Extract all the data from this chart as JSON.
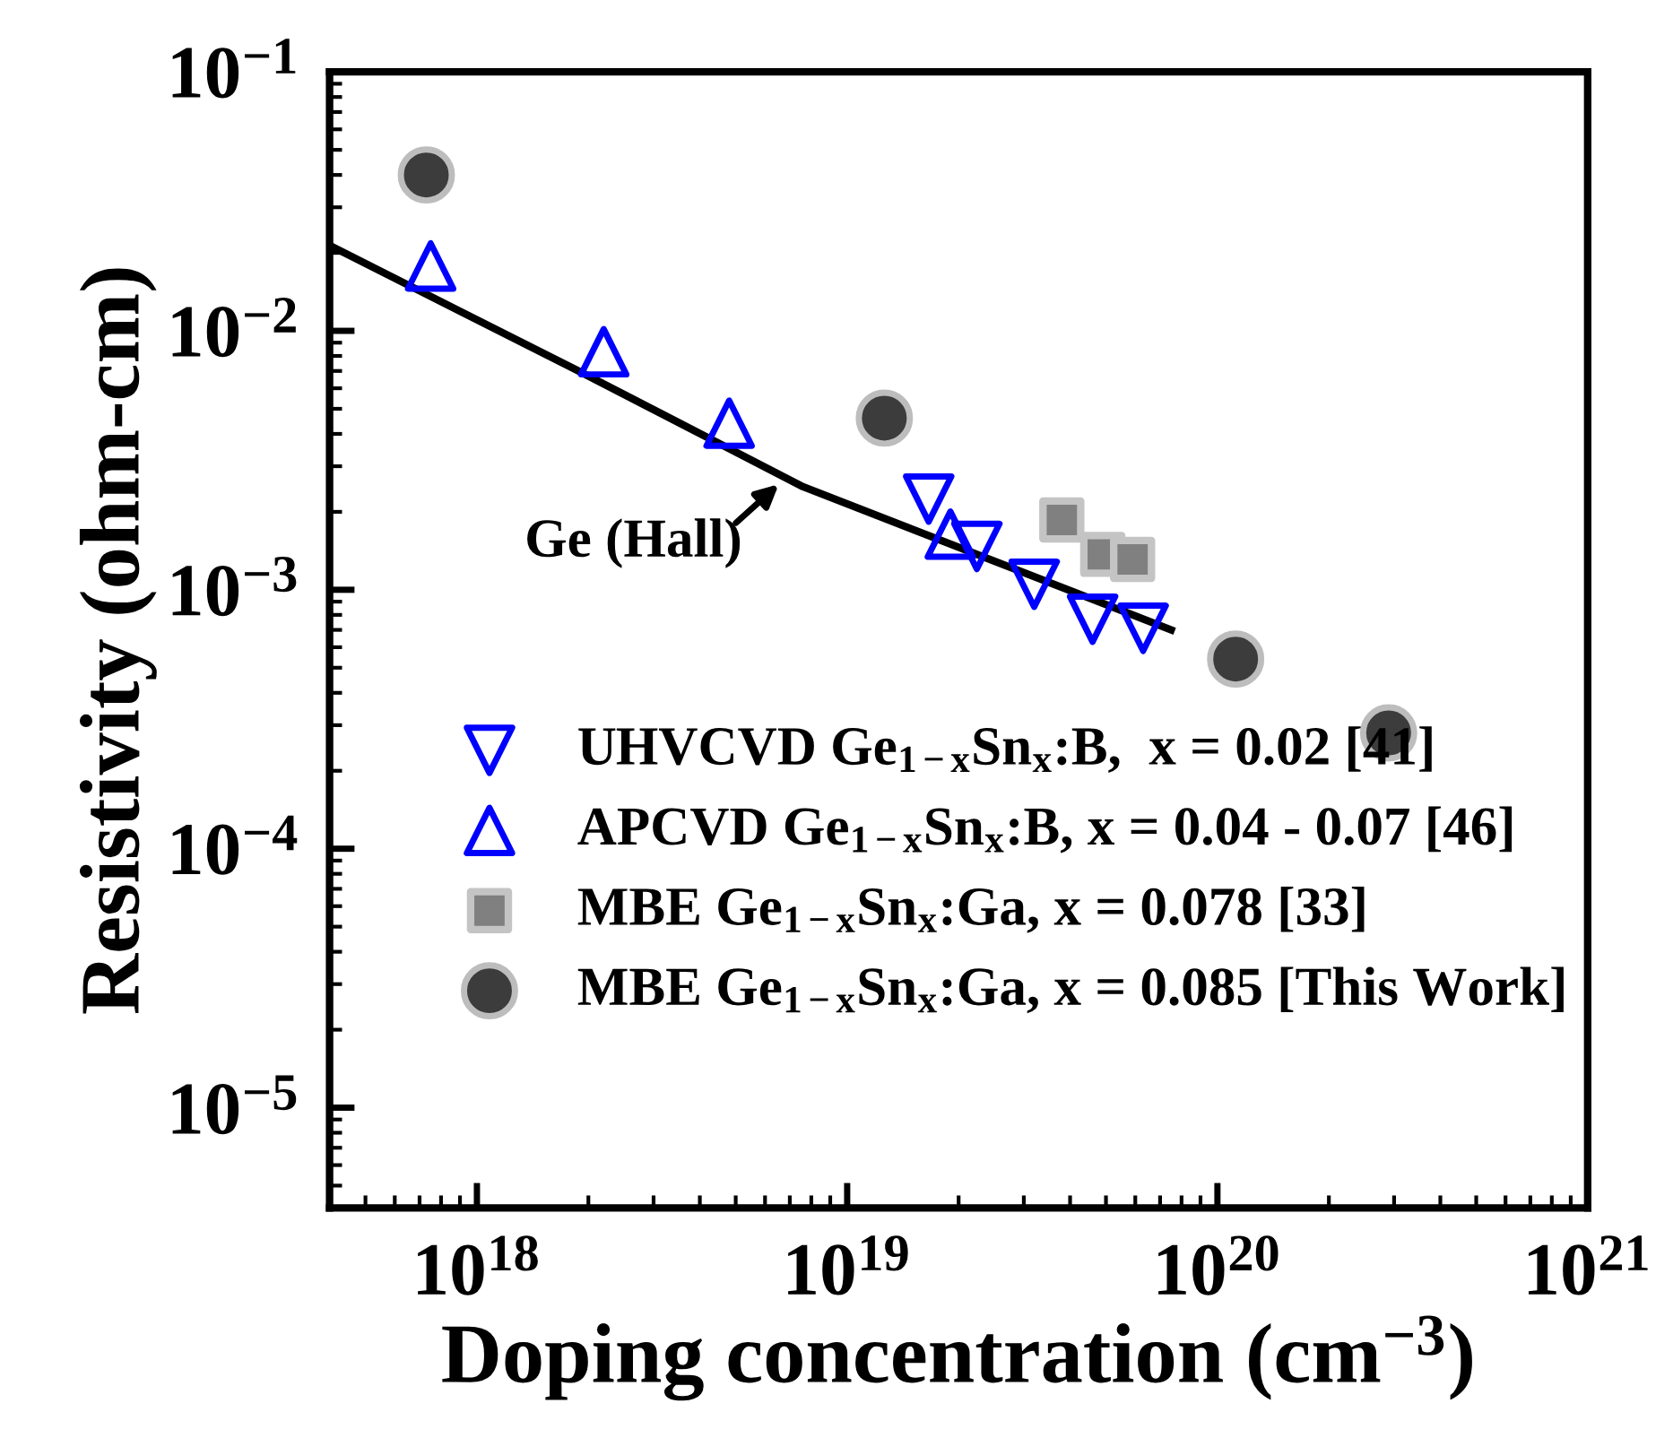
{
  "chart_data": {
    "type": "scatter",
    "xlabel": "Doping concentration (cm$^{−3}$)",
    "ylabel": "Resistivity (ohm-cm)",
    "log": "xy",
    "xlim": [
      4e+17,
      1e+21
    ],
    "ylim": [
      4.1e-06,
      0.1
    ],
    "xticks": [
      {
        "value": 1e+18,
        "label": "10$^{18}$"
      },
      {
        "value": 1e+19,
        "label": "10$^{19}$"
      },
      {
        "value": 1e+20,
        "label": "10$^{20}$"
      },
      {
        "value": 1e+21,
        "label": "10$^{21}$"
      }
    ],
    "yticks": [
      {
        "value": 1e-05,
        "label": "10$^{−5}$"
      },
      {
        "value": 0.0001,
        "label": "10$^{−4}$"
      },
      {
        "value": 0.001,
        "label": "10$^{−3}$"
      },
      {
        "value": 0.01,
        "label": "10$^{−2}$"
      },
      {
        "value": 0.1,
        "label": "10$^{−1}$"
      }
    ],
    "grid": false,
    "legend": "bottom left",
    "series": [
      {
        "name": "UHVCVD Ge$_{1−x}$Sn$_{x}$:B,  x = 0.02 [41]",
        "marker": "triangle_down",
        "color": "#0000ff",
        "x": [
          1.66e+19,
          2.24e+19,
          3.2e+19,
          4.6e+19,
          6.3e+19
        ],
        "values": [
          0.00224,
          0.00147,
          0.00105,
          0.00077,
          0.00071
        ]
      },
      {
        "name": "APCVD Ge$_{1−x}$Sn$_{x}$:B, x = 0.04 - 0.07 [46]",
        "marker": "triangle",
        "color": "#0000ff",
        "x": [
          7.5e+17,
          2.2e+18,
          4.8e+18,
          1.9e+19
        ],
        "values": [
          0.0178,
          0.0083,
          0.0044,
          0.00164
        ]
      },
      {
        "name": "MBE Ge$_{1−x}$Sn$_{x}$:Ga, x = 0.078 [33]",
        "marker": "square",
        "color": "#808080",
        "x": [
          3.8e+19,
          4.9e+19,
          5.9e+19
        ],
        "values": [
          0.00186,
          0.00137,
          0.00131
        ]
      },
      {
        "name": "MBE Ge$_{1−x}$Sn$_{x}$:Ga, x = 0.085 [This Work]",
        "marker": "circle",
        "color": "#3c3c3c",
        "x": [
          7.3e+17,
          1.26e+19,
          1.12e+20,
          2.9e+20
        ],
        "values": [
          0.04,
          0.0046,
          0.00054,
          0.00028
        ]
      },
      {
        "type": "line",
        "color": "#000000",
        "line_style": "solid",
        "x": [
          4.1e+17,
          1.88e+18,
          7.6e+18,
          7.5e+19
        ],
        "values": [
          0.021,
          0.007,
          0.0025,
          0.0007
        ]
      }
    ],
    "annotations": [
      "Ge (Hall)"
    ]
  }
}
